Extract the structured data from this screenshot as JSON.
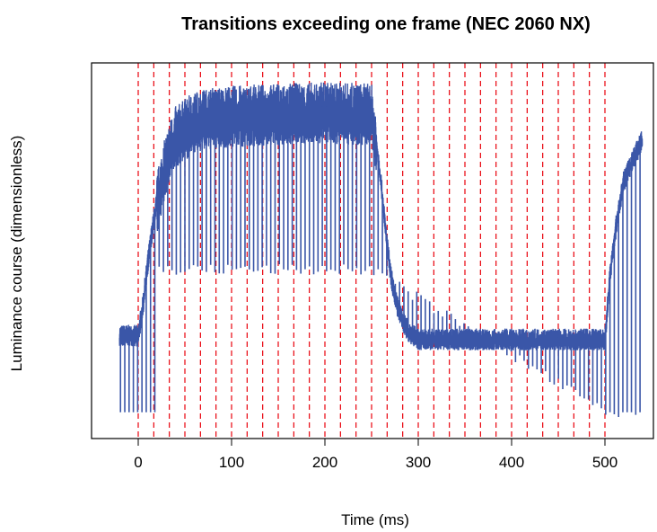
{
  "chart_data": {
    "type": "line",
    "title": "Transitions exceeding one frame (NEC 2060 NX)",
    "xlabel": "Time (ms)",
    "ylabel": "Luminance course (dimensionless)",
    "xlim": [
      -20,
      540
    ],
    "ylim": [
      0,
      1
    ],
    "x_ticks": [
      0,
      100,
      200,
      300,
      400,
      500
    ],
    "y_ticks_shown": false,
    "grid": false,
    "frame_period_ms": 16.67,
    "frame_markers_x": [
      0,
      16.67,
      33.33,
      50,
      66.67,
      83.33,
      100,
      116.67,
      133.33,
      150,
      166.67,
      183.33,
      200,
      216.67,
      233.33,
      250,
      266.67,
      283.33,
      300,
      316.67,
      333.33,
      350,
      366.67,
      383.33,
      400,
      416.67,
      433.33,
      450,
      466.67,
      483.33,
      500
    ],
    "frame_marker_color": "#e8000b",
    "series": [
      {
        "color": "#3a56a8",
        "envelope_x": [
          -20,
          0,
          5,
          10,
          15,
          20,
          25,
          30,
          35,
          40,
          50,
          60,
          80,
          100,
          150,
          200,
          250,
          255,
          260,
          265,
          270,
          275,
          280,
          285,
          290,
          300,
          350,
          400,
          450,
          500,
          505,
          510,
          515,
          520,
          530,
          540
        ],
        "envelope_y": [
          0.28,
          0.28,
          0.36,
          0.47,
          0.56,
          0.64,
          0.7,
          0.75,
          0.79,
          0.82,
          0.84,
          0.86,
          0.87,
          0.875,
          0.88,
          0.885,
          0.88,
          0.8,
          0.69,
          0.56,
          0.45,
          0.38,
          0.34,
          0.31,
          0.29,
          0.27,
          0.27,
          0.27,
          0.27,
          0.27,
          0.43,
          0.54,
          0.62,
          0.69,
          0.75,
          0.8
        ],
        "spike_low_x": [
          0,
          250,
          500,
          540
        ],
        "spike_low_y": [
          0.45,
          0.45,
          0.07,
          0.07
        ]
      }
    ]
  }
}
